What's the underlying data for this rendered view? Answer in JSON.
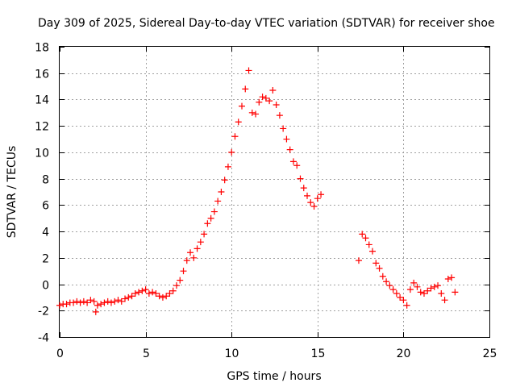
{
  "chart_data": {
    "type": "scatter",
    "title": "Day 309 of 2025, Sidereal Day-to-day VTEC variation (SDTVAR) for receiver shoe",
    "xlabel": "GPS time / hours",
    "ylabel": "SDTVAR / TECUs",
    "xlim": [
      0,
      25
    ],
    "ylim": [
      -4,
      18
    ],
    "x_ticks": [
      0,
      5,
      10,
      15,
      20,
      25
    ],
    "y_ticks": [
      -4,
      -2,
      0,
      2,
      4,
      6,
      8,
      10,
      12,
      14,
      16,
      18
    ],
    "x_tick_labels": [
      "0",
      "5",
      "10",
      "15",
      "20",
      "25"
    ],
    "y_tick_labels": [
      "-4",
      "-2",
      "0",
      "2",
      "4",
      "6",
      "8",
      "10",
      "12",
      "14",
      "16",
      "18"
    ],
    "grid": true,
    "marker": "+",
    "series": [
      {
        "name": "SDTVAR",
        "color": "#ff0000",
        "x": [
          0.0,
          0.2,
          0.4,
          0.6,
          0.8,
          1.0,
          1.2,
          1.4,
          1.6,
          1.8,
          2.0,
          2.1,
          2.2,
          2.4,
          2.6,
          2.8,
          3.0,
          3.2,
          3.4,
          3.6,
          3.8,
          4.0,
          4.2,
          4.4,
          4.6,
          4.8,
          5.0,
          5.2,
          5.4,
          5.6,
          5.8,
          6.0,
          6.2,
          6.4,
          6.6,
          6.8,
          7.0,
          7.2,
          7.4,
          7.6,
          7.8,
          8.0,
          8.2,
          8.4,
          8.6,
          8.8,
          9.0,
          9.2,
          9.4,
          9.6,
          9.8,
          10.0,
          10.2,
          10.4,
          10.6,
          10.8,
          11.0,
          11.2,
          11.4,
          11.6,
          11.8,
          12.0,
          12.2,
          12.4,
          12.6,
          12.8,
          13.0,
          13.2,
          13.4,
          13.6,
          13.8,
          14.0,
          14.2,
          14.4,
          14.6,
          14.8,
          15.0,
          15.2,
          17.4,
          17.6,
          17.8,
          18.0,
          18.2,
          18.4,
          18.6,
          18.8,
          19.0,
          19.2,
          19.4,
          19.6,
          19.8,
          20.0,
          20.2,
          20.4,
          20.6,
          20.8,
          21.0,
          21.2,
          21.4,
          21.6,
          21.8,
          22.0,
          22.2,
          22.4,
          22.6,
          22.8,
          23.0
        ],
        "y": [
          -1.6,
          -1.5,
          -1.5,
          -1.4,
          -1.4,
          -1.3,
          -1.4,
          -1.3,
          -1.4,
          -1.2,
          -1.3,
          -2.1,
          -1.6,
          -1.5,
          -1.4,
          -1.3,
          -1.4,
          -1.3,
          -1.2,
          -1.3,
          -1.1,
          -1.0,
          -0.9,
          -0.7,
          -0.6,
          -0.5,
          -0.4,
          -0.7,
          -0.6,
          -0.7,
          -0.9,
          -1.0,
          -0.9,
          -0.7,
          -0.5,
          -0.1,
          0.3,
          1.0,
          1.8,
          2.4,
          2.0,
          2.7,
          3.2,
          3.8,
          4.6,
          5.0,
          5.5,
          6.3,
          7.0,
          7.9,
          8.9,
          10.0,
          11.2,
          12.3,
          13.5,
          14.8,
          16.2,
          13.0,
          12.9,
          13.8,
          14.2,
          14.1,
          13.9,
          14.7,
          13.6,
          12.8,
          11.8,
          11.0,
          10.2,
          9.3,
          9.0,
          8.0,
          7.3,
          6.7,
          6.2,
          5.9,
          6.5,
          6.8,
          1.8,
          3.8,
          3.5,
          3.0,
          2.5,
          1.6,
          1.2,
          0.6,
          0.2,
          -0.1,
          -0.4,
          -0.7,
          -1.0,
          -1.2,
          -1.6,
          -0.4,
          0.1,
          -0.2,
          -0.6,
          -0.7,
          -0.5,
          -0.3,
          -0.2,
          -0.1,
          -0.7,
          -1.2,
          0.4,
          0.5,
          -0.6
        ]
      }
    ]
  }
}
